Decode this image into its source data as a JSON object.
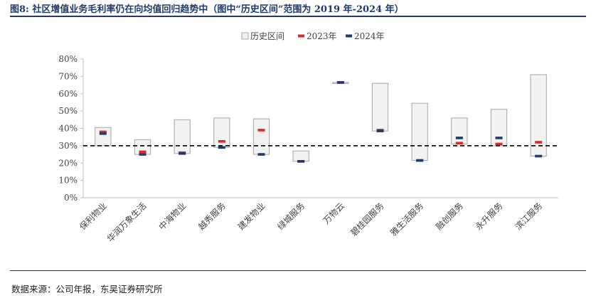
{
  "figure_title": "图8: 社区增值业务毛利率仍在向均值回归趋势中（图中“历史区间”范围为 2019 年-2024 年）",
  "source_note": "数据来源：公司年报，东吴证券研究所",
  "colors": {
    "title": "#1f3a6b",
    "range_fill": "#f2f2f2",
    "range_stroke": "#a6a6a6",
    "y2023": "#e0272b",
    "y2024": "#1f3a6b",
    "axis": "#bfbfbf",
    "reference_line": "#111111"
  },
  "chart_data": {
    "type": "bar",
    "categories": [
      "保利物业",
      "华润万象生活",
      "中海物业",
      "越秀服务",
      "建发物业",
      "绿城服务",
      "万物云",
      "碧桂园服务",
      "雅生活服务",
      "融创服务",
      "永升服务",
      "滨江服务"
    ],
    "series": [
      {
        "name": "历史区间",
        "low": [
          30,
          25,
          25.5,
          29,
          25,
          21,
          66,
          38.5,
          21.5,
          31,
          30,
          24
        ],
        "high": [
          40.5,
          33.5,
          45,
          46,
          45.5,
          27,
          66.5,
          66,
          54.5,
          46,
          51,
          71
        ]
      },
      {
        "name": "2023年",
        "values": [
          38,
          26.5,
          26,
          32.5,
          39,
          21,
          66.5,
          39,
          21.5,
          31.5,
          31,
          32
        ]
      },
      {
        "name": "2024年",
        "values": [
          37,
          25,
          25.5,
          29,
          25,
          21,
          66.5,
          38.5,
          21.5,
          34.5,
          34.5,
          24
        ]
      }
    ],
    "reference_line": 30,
    "ylim": [
      0,
      80
    ],
    "yticks": [
      "0%",
      "10%",
      "20%",
      "30%",
      "40%",
      "50%",
      "60%",
      "70%",
      "80%"
    ],
    "legend_position": "top-center",
    "grid": false
  }
}
